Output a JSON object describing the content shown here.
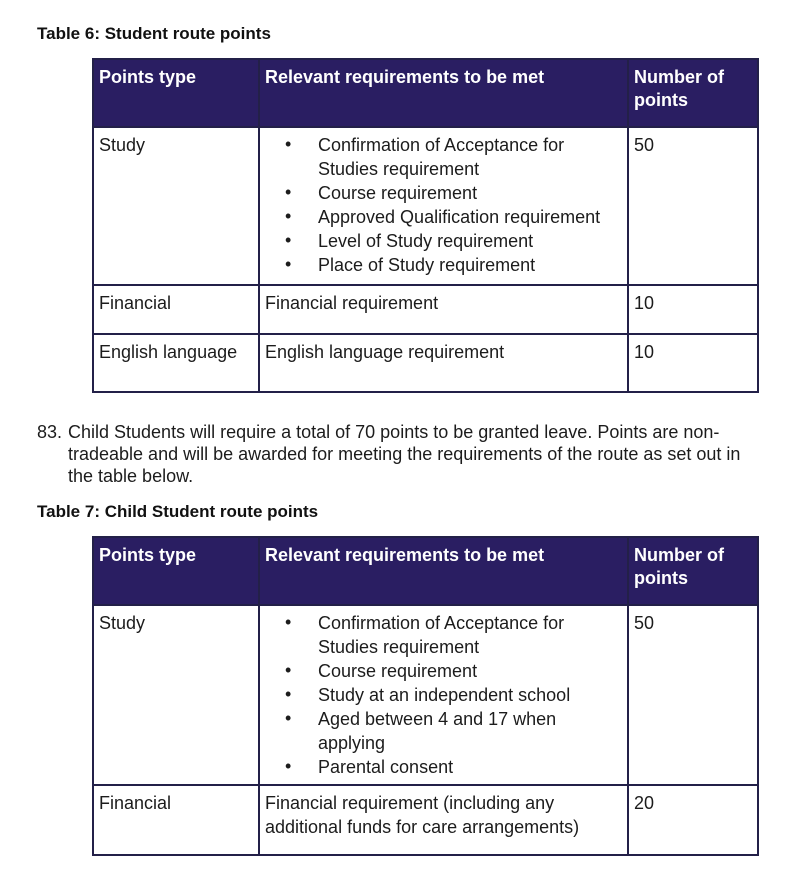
{
  "glyphs": {
    "bullet": "•"
  },
  "colors": {
    "header_bg": "#2a1e62",
    "header_text": "#ffffff",
    "table_border": "#232048",
    "body_text": "#1c1c1c",
    "page_bg": "#ffffff"
  },
  "paragraph_83": {
    "number": "83.",
    "text": "Child Students will require a total of 70 points to be granted leave. Points are non-tradeable and will be awarded for meeting the requirements of the route as set out in the table below."
  },
  "tables": [
    {
      "title": "Table 6: Student route points",
      "headers": [
        "Points type",
        "Relevant requirements to be met",
        "Number of points"
      ],
      "rows": [
        {
          "type": "Study",
          "requirements": [
            "Confirmation of Acceptance for Studies requirement",
            "Course requirement",
            "Approved Qualification requirement",
            "Level of Study requirement",
            "Place of Study requirement"
          ],
          "points": "50"
        },
        {
          "type": "Financial",
          "requirement": "Financial requirement",
          "points": "10"
        },
        {
          "type": "English language",
          "requirement": "English language requirement",
          "points": "10"
        }
      ]
    },
    {
      "title": "Table 7: Child Student route points",
      "headers": [
        "Points type",
        "Relevant requirements to be met",
        "Number of points"
      ],
      "rows": [
        {
          "type": "Study",
          "requirements": [
            "Confirmation of Acceptance for Studies requirement",
            "Course requirement",
            "Study at an independent school",
            "Aged between 4 and 17 when applying",
            "Parental consent"
          ],
          "points": "50"
        },
        {
          "type": "Financial",
          "requirement": "Financial requirement (including any additional funds for care arrangements)",
          "points": "20"
        }
      ]
    }
  ]
}
